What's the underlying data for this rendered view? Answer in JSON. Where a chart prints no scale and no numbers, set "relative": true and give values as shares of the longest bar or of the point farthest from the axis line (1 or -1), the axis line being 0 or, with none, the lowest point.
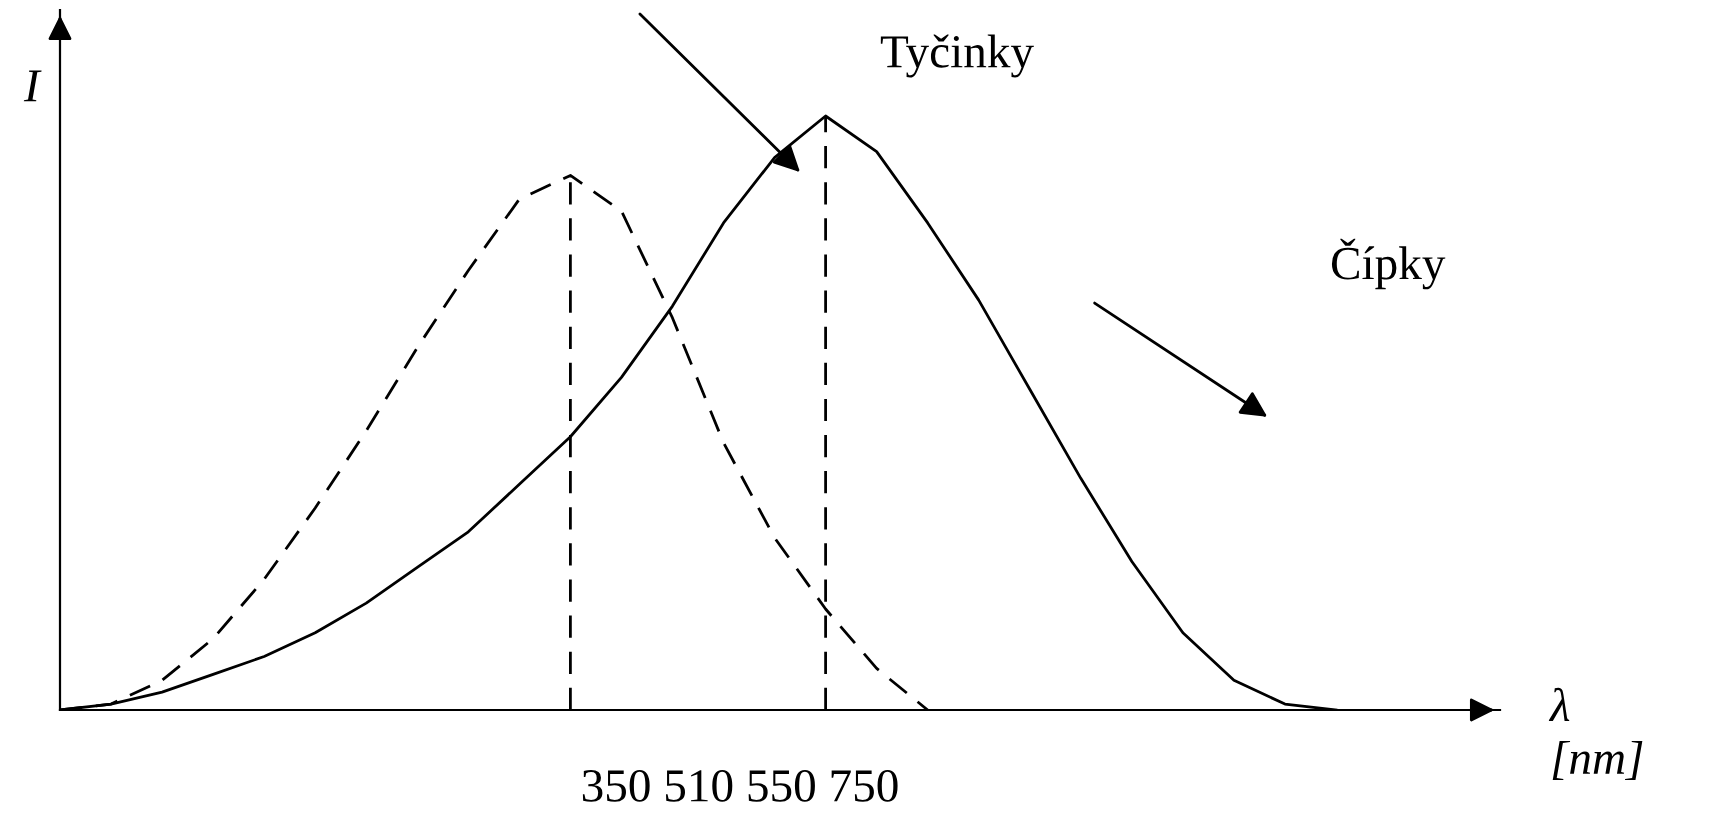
{
  "chart_data": {
    "type": "line",
    "relative": true,
    "ylabel": "I",
    "xlabel": "λ\n[nm]",
    "categories": [
      null,
      null,
      null,
      null,
      null,
      null,
      null,
      null,
      null,
      null,
      null,
      null,
      null,
      null,
      null,
      null,
      null,
      null,
      null,
      null,
      null,
      null,
      null,
      null,
      null,
      null,
      null,
      null,
      null
    ],
    "series": [
      {
        "color": "#000000",
        "line_style": "dashed",
        "values": [
          0,
          0.01,
          0.05,
          0.12,
          0.22,
          0.34,
          0.47,
          0.61,
          0.74,
          0.86,
          0.9,
          0.84,
          0.66,
          0.45,
          0.29,
          0.17,
          0.07,
          0,
          null,
          null,
          null,
          null,
          null,
          null,
          null,
          null,
          null,
          null,
          null
        ]
      },
      {
        "color": "#000000",
        "line_style": "solid",
        "values": [
          0,
          0.01,
          0.03,
          0.06,
          0.09,
          0.13,
          0.18,
          0.24,
          0.3,
          0.38,
          0.46,
          0.56,
          0.68,
          0.82,
          0.93,
          1.0,
          0.94,
          0.82,
          0.69,
          0.54,
          0.39,
          0.25,
          0.13,
          0.05,
          0.01,
          0,
          null,
          null,
          null
        ]
      }
    ],
    "annotations": [
      "Tyčinky",
      "Čípky",
      "350 510 550 750"
    ]
  }
}
